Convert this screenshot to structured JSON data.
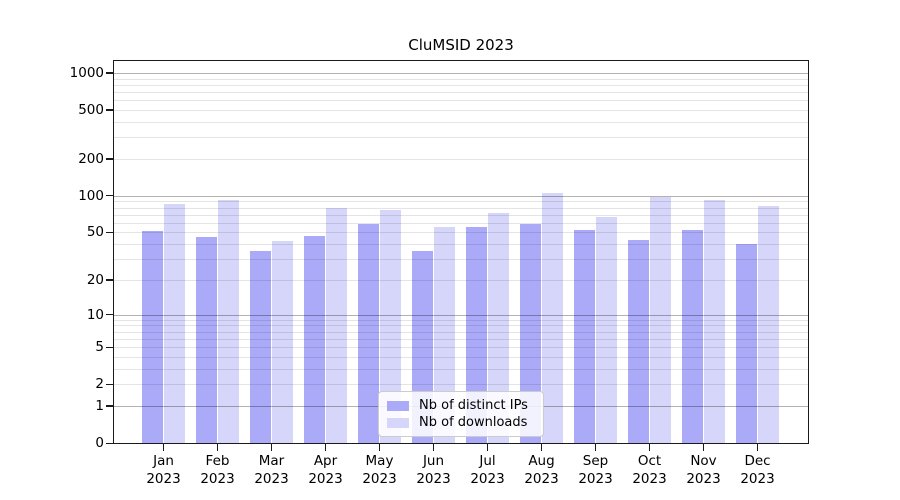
{
  "chart_data": {
    "type": "bar",
    "title": "CluMSID 2023",
    "categories": [
      "Jan",
      "Feb",
      "Mar",
      "Apr",
      "May",
      "Jun",
      "Jul",
      "Aug",
      "Sep",
      "Oct",
      "Nov",
      "Dec"
    ],
    "year_label": "2023",
    "series": [
      {
        "name": "Nb of distinct IPs",
        "color": "#aaaaf8",
        "values": [
          51,
          46,
          35,
          47,
          59,
          35,
          55,
          59,
          52,
          43,
          52,
          40
        ]
      },
      {
        "name": "Nb of downloads",
        "color": "#d6d6fa",
        "values": [
          86,
          93,
          42,
          80,
          77,
          55,
          72,
          105,
          67,
          98,
          92,
          83
        ]
      }
    ],
    "xlabel": "",
    "ylabel": "",
    "y_scale": "log1p",
    "ylim": [
      0,
      1260
    ],
    "y_tick_labels": [
      0,
      1,
      2,
      5,
      10,
      20,
      50,
      100,
      200,
      500,
      1000
    ],
    "y_major_gridlines": [
      1,
      10,
      100,
      1000
    ],
    "y_minor_gridlines": [
      2,
      3,
      4,
      5,
      6,
      7,
      8,
      9,
      20,
      30,
      40,
      50,
      60,
      70,
      80,
      90,
      200,
      300,
      400,
      500,
      600,
      700,
      800,
      900
    ],
    "grid": true,
    "legend_position": "lower center",
    "colors": {
      "background": "#ffffff",
      "spine": "#1a1a1a",
      "major_grid": "#b3b3b3",
      "minor_grid": "#e4e4e4",
      "legend_border": "#cccccc"
    }
  }
}
